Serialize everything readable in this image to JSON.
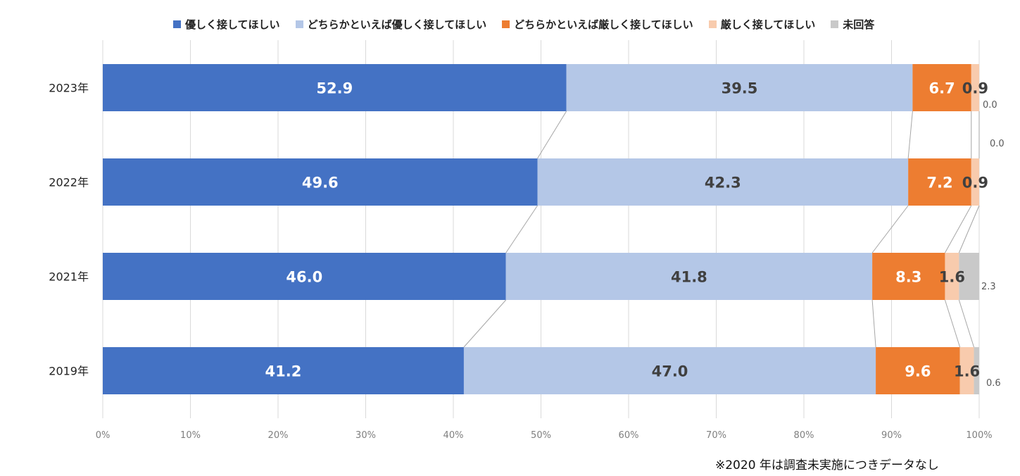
{
  "chart_data": {
    "type": "bar",
    "orientation": "horizontal",
    "stacked": true,
    "percent_scale": true,
    "categories": [
      "2023年",
      "2022年",
      "2021年",
      "2019年"
    ],
    "series": [
      {
        "name": "優しく接してほしい",
        "color": "#4472c4",
        "values": [
          52.9,
          49.6,
          46.0,
          41.2
        ]
      },
      {
        "name": "どちらかといえば優しく接してほしい",
        "color": "#b4c7e7",
        "values": [
          39.5,
          42.3,
          41.8,
          47.0
        ]
      },
      {
        "name": "どちらかといえば厳しく接してほしい",
        "color": "#ed7d31",
        "values": [
          6.7,
          7.2,
          8.3,
          9.6
        ]
      },
      {
        "name": "厳しく接してほしい",
        "color": "#f8cbad",
        "values": [
          0.9,
          0.9,
          1.6,
          1.6
        ]
      },
      {
        "name": "未回答",
        "color": "#c9c9c9",
        "values": [
          0.0,
          0.0,
          2.3,
          0.6
        ]
      }
    ],
    "x_ticks": [
      "0%",
      "10%",
      "20%",
      "30%",
      "40%",
      "50%",
      "60%",
      "70%",
      "80%",
      "90%",
      "100%"
    ],
    "xlim": [
      0,
      100
    ],
    "grid": true,
    "legend_position": "top",
    "series_lines": true
  },
  "footnote": "※2020 年は調査未実施につきデータなし"
}
